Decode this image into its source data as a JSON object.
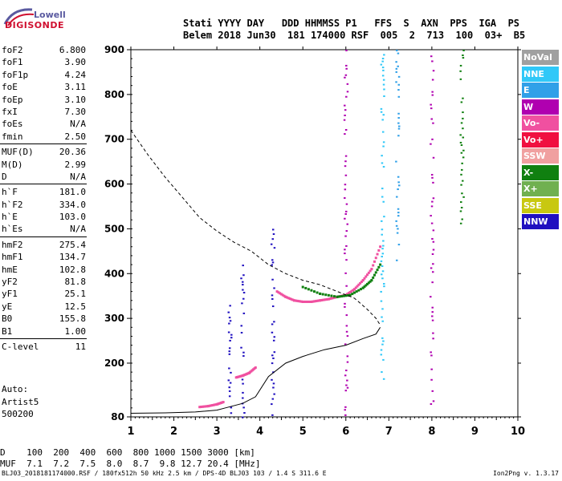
{
  "logo": {
    "brand": "Lowell",
    "name": "DIGISONDE"
  },
  "header": {
    "row1": "Stati YYYY DAY   DDD HHMMSS P1   FFS  S  AXN  PPS  IGA  PS",
    "row2": "Belem 2018 Jun30  181 174000 RSF  005  2  713  100  03+  B5"
  },
  "params": [
    {
      "label": "foF2",
      "value": "6.800"
    },
    {
      "label": "foF1",
      "value": "3.90"
    },
    {
      "label": "foF1p",
      "value": "4.24"
    },
    {
      "label": "foE",
      "value": "3.11"
    },
    {
      "label": "foEp",
      "value": "3.10"
    },
    {
      "label": "fxI",
      "value": "7.30"
    },
    {
      "label": "foEs",
      "value": "N/A"
    },
    {
      "label": "fmin",
      "value": "2.50"
    },
    {
      "label": "MUF(D)",
      "value": "20.36"
    },
    {
      "label": "M(D)",
      "value": "2.99"
    },
    {
      "label": "D",
      "value": "N/A"
    },
    {
      "label": "h`F",
      "value": "181.0"
    },
    {
      "label": "h`F2",
      "value": "334.0"
    },
    {
      "label": "h`E",
      "value": "103.0"
    },
    {
      "label": "h`Es",
      "value": "N/A"
    },
    {
      "label": "hmF2",
      "value": "275.4"
    },
    {
      "label": "hmF1",
      "value": "134.7"
    },
    {
      "label": "hmE",
      "value": "102.8"
    },
    {
      "label": "yF2",
      "value": "81.8"
    },
    {
      "label": "yF1",
      "value": "25.1"
    },
    {
      "label": "yE",
      "value": "12.5"
    },
    {
      "label": "B0",
      "value": "155.8"
    },
    {
      "label": "B1",
      "value": "1.00"
    },
    {
      "label": "C-level",
      "value": "11"
    }
  ],
  "autoscale": [
    "Auto:",
    "Artist5",
    "500200"
  ],
  "muf_table": {
    "row1": "D    100  200  400  600  800 1000 1500 3000 [km]",
    "row2": "MUF  7.1  7.2  7.5  8.0  8.7  9.8 12.7 20.4 [MHz]"
  },
  "footer": "BLJ03_2018181174000.RSF / 180fx512h 50 kHz 2.5 km / DPS-4D BLJ03 103 / 1.4 S 311.6 E",
  "version": "Ion2Png v. 1.3.17",
  "legend": [
    {
      "label": "NoVal",
      "color": "#a0a0a0"
    },
    {
      "label": "NNE",
      "color": "#30c8f8"
    },
    {
      "label": "E",
      "color": "#30a0e8"
    },
    {
      "label": "W",
      "color": "#b000b0"
    },
    {
      "label": "Vo-",
      "color": "#f050a0"
    },
    {
      "label": "Vo+",
      "color": "#f01040"
    },
    {
      "label": "SSW",
      "color": "#f0a0a0"
    },
    {
      "label": "X-",
      "color": "#108010"
    },
    {
      "label": "X+",
      "color": "#70b050"
    },
    {
      "label": "SSE",
      "color": "#c8c810"
    },
    {
      "label": "NNW",
      "color": "#2010c0"
    }
  ],
  "chart_data": {
    "type": "scatter",
    "xlim": [
      1,
      10
    ],
    "ylim": [
      80,
      900
    ],
    "x_ticks": [
      1,
      2,
      3,
      4,
      5,
      6,
      7,
      8,
      9,
      10
    ],
    "y_ticks": [
      80,
      200,
      300,
      400,
      500,
      600,
      700,
      800,
      900
    ],
    "grid": false,
    "legend_position": "right",
    "profile_solid": {
      "x": [
        1.0,
        1.8,
        2.5,
        3.0,
        3.2,
        3.6,
        3.9,
        4.2,
        4.6,
        5.0,
        5.5,
        6.0,
        6.4,
        6.7,
        6.8
      ],
      "y": [
        88,
        89,
        91,
        95,
        100,
        110,
        125,
        170,
        200,
        215,
        230,
        240,
        255,
        265,
        280
      ]
    },
    "profile_dashed": {
      "x": [
        1.0,
        1.4,
        1.8,
        2.2,
        2.6,
        3.0,
        3.4,
        3.8,
        4.2,
        4.6,
        5.0,
        5.4,
        5.8,
        6.2,
        6.5,
        6.7,
        6.8
      ],
      "y": [
        720,
        665,
        615,
        570,
        525,
        495,
        470,
        450,
        420,
        400,
        385,
        375,
        360,
        345,
        320,
        300,
        285
      ]
    },
    "traces": [
      {
        "name": "Vo-",
        "x": [
          2.6,
          2.8,
          3.0,
          3.15
        ],
        "y": [
          102,
          104,
          108,
          113
        ]
      },
      {
        "name": "Vo-",
        "x": [
          3.45,
          3.6,
          3.75,
          3.9
        ],
        "y": [
          168,
          172,
          178,
          190
        ]
      },
      {
        "name": "Vo-",
        "x": [
          4.4,
          4.6,
          4.8,
          5.0,
          5.2,
          5.4,
          5.6,
          5.8,
          6.0
        ],
        "y": [
          360,
          348,
          340,
          337,
          337,
          340,
          343,
          348,
          352
        ]
      },
      {
        "name": "Vo-",
        "x": [
          6.0,
          6.2,
          6.4,
          6.6,
          6.8
        ],
        "y": [
          352,
          365,
          385,
          410,
          460
        ]
      },
      {
        "name": "X-",
        "x": [
          5.0,
          5.4,
          5.8,
          6.1,
          6.4,
          6.6,
          6.8
        ],
        "y": [
          370,
          355,
          348,
          352,
          368,
          385,
          420
        ]
      }
    ],
    "vertical_bands": [
      {
        "name": "NNW",
        "x": 3.3,
        "y": [
          80,
          330
        ]
      },
      {
        "name": "NNW",
        "x": 3.6,
        "y": [
          80,
          420
        ]
      },
      {
        "name": "NNW",
        "x": 4.3,
        "y": [
          80,
          500
        ]
      },
      {
        "name": "W",
        "x": 6.0,
        "y": [
          80,
          900
        ]
      },
      {
        "name": "NNE",
        "x": 6.85,
        "y": [
          150,
          900
        ]
      },
      {
        "name": "E",
        "x": 7.2,
        "y": [
          430,
          900
        ]
      },
      {
        "name": "W",
        "x": 8.0,
        "y": [
          80,
          900
        ]
      },
      {
        "name": "X-",
        "x": 8.7,
        "y": [
          500,
          900
        ]
      }
    ]
  }
}
